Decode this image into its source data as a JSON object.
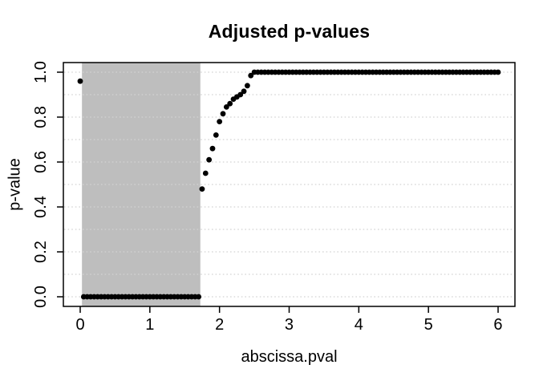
{
  "header": {
    "title": "Adjusted p-values"
  },
  "chart_data": {
    "type": "scatter",
    "title": "Adjusted p-values",
    "xlabel": "abscissa.pval",
    "ylabel": "p-value",
    "xlim": [
      -0.24,
      6.24
    ],
    "ylim": [
      -0.04,
      1.04
    ],
    "x_ticks": [
      0,
      1,
      2,
      3,
      4,
      5,
      6
    ],
    "x_tick_labels": [
      "0",
      "1",
      "2",
      "3",
      "4",
      "5",
      "6"
    ],
    "y_ticks": [
      0.0,
      0.2,
      0.4,
      0.6,
      0.8,
      1.0
    ],
    "y_tick_labels": [
      "0.0",
      "0.2",
      "0.4",
      "0.6",
      "0.8",
      "1.0"
    ],
    "grid": {
      "horizontal_lines_from": 0.0,
      "horizontal_lines_to": 1.0,
      "horizontal_step": 0.1,
      "vertical_lines": false,
      "style": "dotted",
      "color": "#d3d3d3"
    },
    "legend": "none",
    "highlight_rect": {
      "x0": 0.025,
      "x1": 1.725,
      "full_height": true,
      "color": "#bebebe"
    },
    "marker": {
      "shape": "filled-circle",
      "radius_px": 3.4,
      "color": "#000000"
    },
    "x_step": 0.05,
    "series": [
      {
        "name": "adjusted p-values",
        "segments": [
          {
            "x0": 0.0,
            "x1": 0.0,
            "y": 0.96
          },
          {
            "x0": 0.05,
            "x1": 1.7,
            "y": 0.0
          },
          {
            "x0": 1.75,
            "x1": 1.75,
            "y": 0.48
          },
          {
            "x0": 1.8,
            "x1": 1.8,
            "y": 0.55
          },
          {
            "x0": 1.85,
            "x1": 1.85,
            "y": 0.61
          },
          {
            "x0": 1.9,
            "x1": 1.9,
            "y": 0.66
          },
          {
            "x0": 1.95,
            "x1": 1.95,
            "y": 0.72
          },
          {
            "x0": 2.0,
            "x1": 2.0,
            "y": 0.78
          },
          {
            "x0": 2.05,
            "x1": 2.05,
            "y": 0.815
          },
          {
            "x0": 2.1,
            "x1": 2.1,
            "y": 0.845
          },
          {
            "x0": 2.15,
            "x1": 2.15,
            "y": 0.86
          },
          {
            "x0": 2.2,
            "x1": 2.2,
            "y": 0.88
          },
          {
            "x0": 2.25,
            "x1": 2.25,
            "y": 0.89
          },
          {
            "x0": 2.3,
            "x1": 2.3,
            "y": 0.9
          },
          {
            "x0": 2.35,
            "x1": 2.35,
            "y": 0.915
          },
          {
            "x0": 2.4,
            "x1": 2.4,
            "y": 0.94
          },
          {
            "x0": 2.45,
            "x1": 2.45,
            "y": 0.985
          },
          {
            "x0": 2.5,
            "x1": 6.0,
            "y": 1.0
          }
        ]
      }
    ],
    "colors": {
      "point": "#000000",
      "highlight": "#bebebe",
      "grid": "#d3d3d3",
      "axis": "#000000",
      "background": "#ffffff"
    }
  }
}
